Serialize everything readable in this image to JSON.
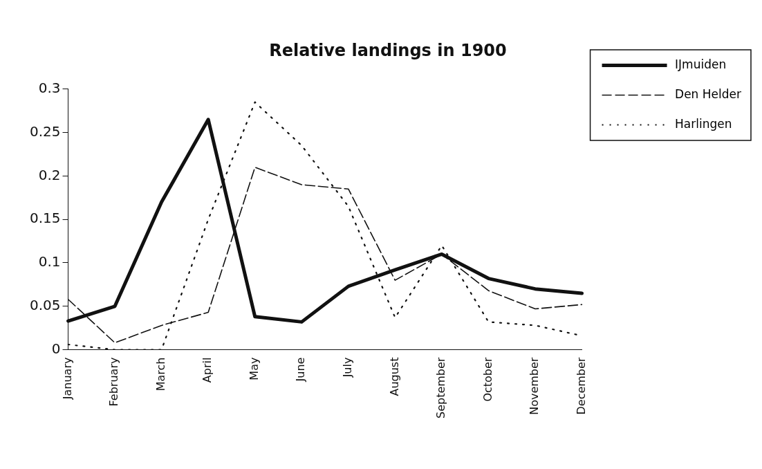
{
  "chart_data": {
    "type": "line",
    "title": "Relative landings in 1900",
    "categories": [
      "January",
      "February",
      "March",
      "April",
      "May",
      "June",
      "July",
      "August",
      "September",
      "October",
      "November",
      "December"
    ],
    "series": [
      {
        "name": "IJmuiden",
        "color": "#111111",
        "line_style": "solid",
        "values": [
          0.033,
          0.05,
          0.17,
          0.265,
          0.038,
          0.032,
          0.073,
          0.092,
          0.11,
          0.082,
          0.07,
          0.065
        ]
      },
      {
        "name": "Den Helder",
        "color": "#111111",
        "line_style": "dashed",
        "values": [
          0.058,
          0.008,
          0.028,
          0.043,
          0.21,
          0.19,
          0.185,
          0.08,
          0.11,
          0.068,
          0.047,
          0.052
        ]
      },
      {
        "name": "Harlingen",
        "color": "#111111",
        "line_style": "dotted",
        "values": [
          0.006,
          0,
          0,
          0.15,
          0.285,
          0.235,
          0.165,
          0.037,
          0.12,
          0.032,
          0.028,
          0.016
        ]
      }
    ],
    "ylim": [
      0,
      0.3
    ],
    "yticks": [
      0,
      0.05,
      0.1,
      0.15,
      0.2,
      0.25,
      0.3
    ],
    "grid": false,
    "legend": "top right",
    "marker": "none"
  }
}
